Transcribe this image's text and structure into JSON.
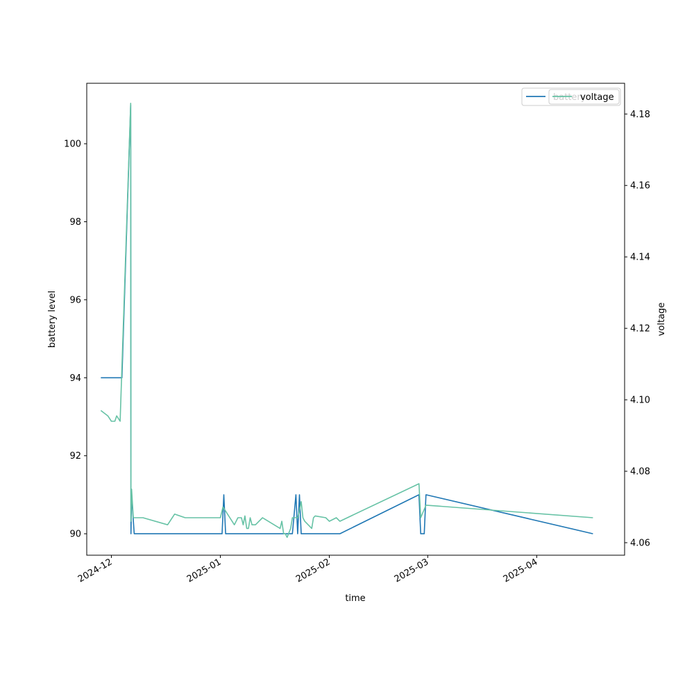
{
  "chart_data": {
    "type": "line",
    "xlabel": "time",
    "ylabel": "battery level",
    "ylabel_right": "voltage",
    "xlim": [
      "2024-11-24",
      "2025-04-26"
    ],
    "ylim": [
      89.45,
      101.55
    ],
    "ylim_right": [
      4.0565,
      4.1886
    ],
    "x_ticks": [
      {
        "value": "2024-12-01",
        "label": "2024-12"
      },
      {
        "value": "2025-01-01",
        "label": "2025-01"
      },
      {
        "value": "2025-02-01",
        "label": "2025-02"
      },
      {
        "value": "2025-03-01",
        "label": "2025-03"
      },
      {
        "value": "2025-04-01",
        "label": "2025-04"
      }
    ],
    "y_ticks": [
      90,
      92,
      94,
      96,
      98,
      100
    ],
    "y_ticks_right": [
      "4.06",
      "4.08",
      "4.10",
      "4.12",
      "4.14",
      "4.16",
      "4.18"
    ],
    "grid": false,
    "legend_placement": "top-right",
    "series": [
      {
        "name": "battery",
        "axis": "left",
        "color": "#1f77b4",
        "points": [
          [
            "2024-11-28",
            94
          ],
          [
            "2024-12-04",
            94
          ],
          [
            "2024-12-06 12:00",
            101
          ],
          [
            "2024-12-06 14:00",
            90
          ],
          [
            "2024-12-06 18:00",
            91
          ],
          [
            "2024-12-07 12:00",
            90
          ],
          [
            "2025-01-01 12:00",
            90
          ],
          [
            "2025-01-02",
            91
          ],
          [
            "2025-01-02 12:00",
            90
          ],
          [
            "2025-01-21 12:00",
            90
          ],
          [
            "2025-01-22 12:00",
            91
          ],
          [
            "2025-01-23",
            90
          ],
          [
            "2025-01-23 12:00",
            91
          ],
          [
            "2025-01-24",
            90
          ],
          [
            "2025-02-04",
            90
          ],
          [
            "2025-02-26 12:00",
            91
          ],
          [
            "2025-02-27",
            90
          ],
          [
            "2025-02-28",
            90
          ],
          [
            "2025-02-28 12:00",
            91
          ],
          [
            "2025-04-17",
            90
          ]
        ]
      },
      {
        "name": "voltage",
        "axis": "right",
        "color": "#66c2a5",
        "points": [
          [
            "2024-11-28",
            4.097
          ],
          [
            "2024-11-30",
            4.0955
          ],
          [
            "2024-12-01",
            4.094
          ],
          [
            "2024-12-02",
            4.094
          ],
          [
            "2024-12-02 12:00",
            4.0955
          ],
          [
            "2024-12-03 12:00",
            4.094
          ],
          [
            "2024-12-06 12:00",
            4.183
          ],
          [
            "2024-12-06 14:00",
            4.066
          ],
          [
            "2024-12-06 18:00",
            4.075
          ],
          [
            "2024-12-07 06:00",
            4.067
          ],
          [
            "2024-12-10",
            4.067
          ],
          [
            "2024-12-17",
            4.065
          ],
          [
            "2024-12-19",
            4.068
          ],
          [
            "2024-12-22",
            4.067
          ],
          [
            "2025-01-01",
            4.067
          ],
          [
            "2025-01-01 18:00",
            4.07
          ],
          [
            "2025-01-05",
            4.065
          ],
          [
            "2025-01-06",
            4.067
          ],
          [
            "2025-01-07",
            4.067
          ],
          [
            "2025-01-07 12:00",
            4.065
          ],
          [
            "2025-01-08",
            4.0675
          ],
          [
            "2025-01-08 12:00",
            4.064
          ],
          [
            "2025-01-09",
            4.064
          ],
          [
            "2025-01-09 12:00",
            4.067
          ],
          [
            "2025-01-10",
            4.065
          ],
          [
            "2025-01-11",
            4.065
          ],
          [
            "2025-01-12",
            4.066
          ],
          [
            "2025-01-13",
            4.067
          ],
          [
            "2025-01-18",
            4.064
          ],
          [
            "2025-01-18 12:00",
            4.066
          ],
          [
            "2025-01-19",
            4.0625
          ],
          [
            "2025-01-19 12:00",
            4.0625
          ],
          [
            "2025-01-20",
            4.0615
          ],
          [
            "2025-01-21",
            4.064
          ],
          [
            "2025-01-21 12:00",
            4.067
          ],
          [
            "2025-01-23",
            4.067
          ],
          [
            "2025-01-23 12:00",
            4.069
          ],
          [
            "2025-01-24",
            4.0715
          ],
          [
            "2025-01-24 12:00",
            4.067
          ],
          [
            "2025-01-25",
            4.066
          ],
          [
            "2025-01-27",
            4.064
          ],
          [
            "2025-01-27 12:00",
            4.067
          ],
          [
            "2025-01-28",
            4.0675
          ],
          [
            "2025-01-31",
            4.067
          ],
          [
            "2025-02-01",
            4.066
          ],
          [
            "2025-02-03",
            4.067
          ],
          [
            "2025-02-04",
            4.066
          ],
          [
            "2025-02-26 12:00",
            4.0765
          ],
          [
            "2025-02-27",
            4.067
          ],
          [
            "2025-02-28 12:00",
            4.0705
          ],
          [
            "2025-04-17",
            4.067
          ]
        ]
      }
    ]
  }
}
